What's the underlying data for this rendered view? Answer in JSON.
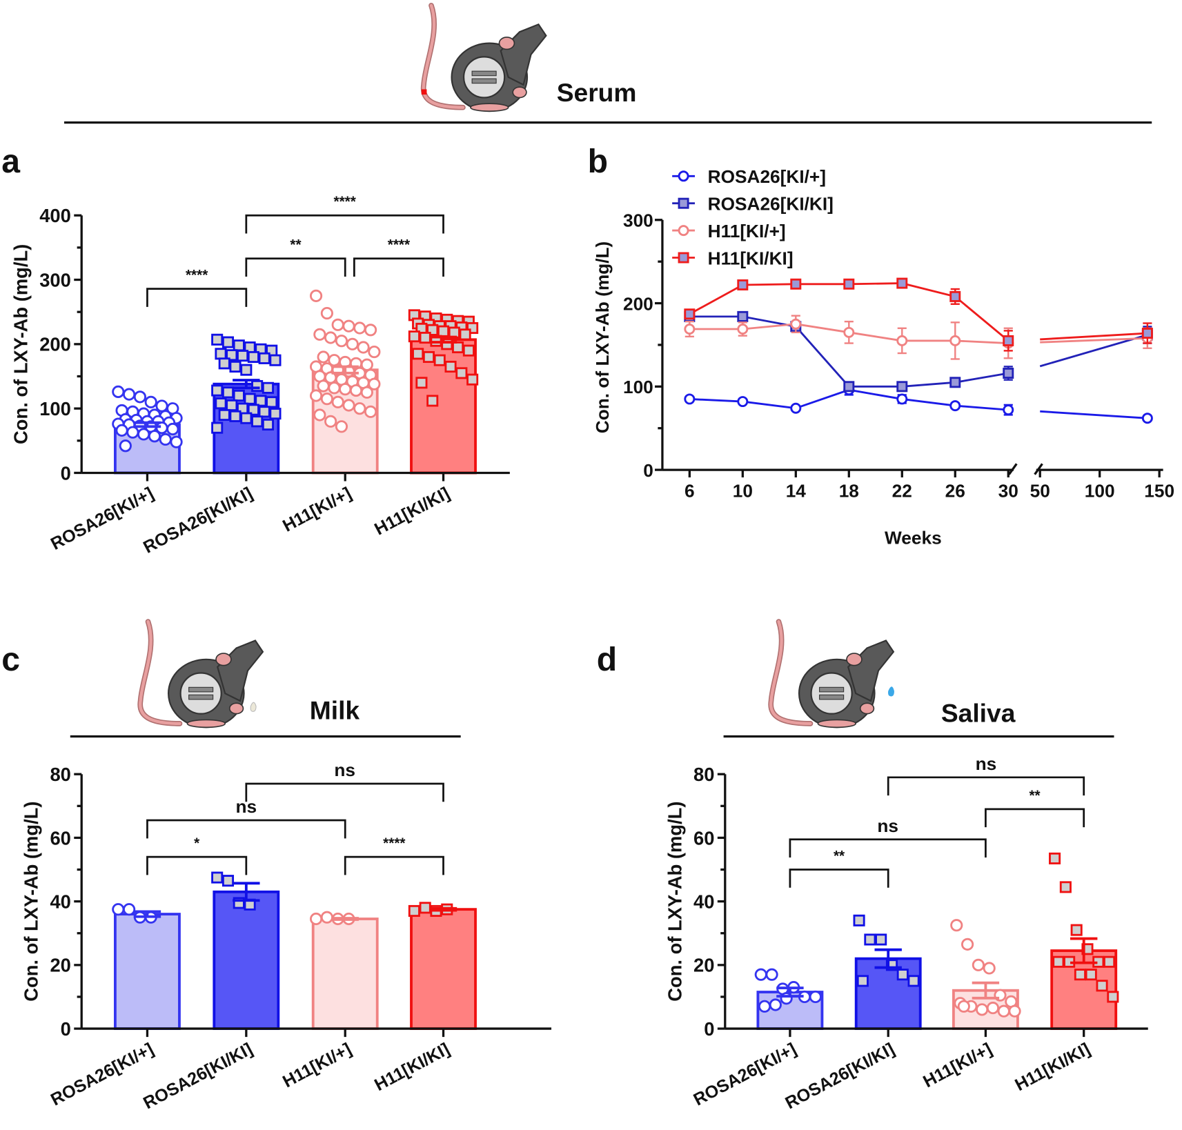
{
  "headers": {
    "serum": "Serum",
    "milk": "Milk",
    "saliva": "Saliva"
  },
  "panel_labels": {
    "a": "a",
    "b": "b",
    "c": "c",
    "d": "d"
  },
  "colors": {
    "rosa_het_fill": "#bcbcf8",
    "rosa_het_stroke": "#3434f0",
    "rosa_hom_fill": "#5656f6",
    "rosa_hom_stroke": "#1010e6",
    "h11_het_fill": "#fde0e0",
    "h11_het_stroke": "#f08282",
    "h11_hom_fill": "#ff8080",
    "h11_hom_stroke": "#f01010",
    "square_fill": "#cfcfcf"
  },
  "chart_data": [
    {
      "id": "a",
      "type": "bar",
      "title": "",
      "xlabel": "",
      "ylabel": "Con. of LXY-Ab (mg/L)",
      "ylim": [
        0,
        400
      ],
      "yticks": [
        0,
        100,
        200,
        300,
        400
      ],
      "categories": [
        "ROSA26[KI/+]",
        "ROSA26[KI/KI]",
        "H11[KI/+]",
        "H11[KI/KI]"
      ],
      "means": [
        75,
        138,
        160,
        207
      ],
      "sems": [
        3,
        6,
        5,
        4
      ],
      "points": [
        [
          126,
          122,
          118,
          110,
          104,
          100,
          97,
          95,
          92,
          90,
          88,
          85,
          83,
          82,
          80,
          80,
          78,
          76,
          75,
          73,
          72,
          70,
          68,
          66,
          63,
          60,
          57,
          52,
          48,
          42
        ],
        [
          207,
          203,
          198,
          195,
          192,
          190,
          185,
          183,
          182,
          180,
          178,
          175,
          170,
          165,
          160,
          135,
          132,
          128,
          125,
          120,
          115,
          112,
          110,
          108,
          105,
          100,
          98,
          95,
          92,
          90,
          88,
          85,
          80,
          75,
          70
        ],
        [
          275,
          248,
          230,
          228,
          225,
          222,
          215,
          210,
          205,
          200,
          195,
          188,
          180,
          175,
          172,
          170,
          168,
          165,
          162,
          160,
          158,
          155,
          152,
          150,
          148,
          145,
          142,
          140,
          138,
          135,
          132,
          130,
          128,
          125,
          120,
          115,
          110,
          105,
          100,
          95,
          90,
          80,
          72
        ],
        [
          245,
          243,
          240,
          238,
          236,
          235,
          232,
          230,
          228,
          228,
          226,
          225,
          224,
          222,
          220,
          218,
          215,
          212,
          210,
          205,
          200,
          195,
          190,
          185,
          180,
          175,
          165,
          155,
          145,
          140,
          112
        ]
      ],
      "significance": [
        {
          "from": 0,
          "to": 1,
          "label": "****",
          "level": 286
        },
        {
          "from": 1,
          "to": 2,
          "label": "**",
          "level": 333
        },
        {
          "from": 2,
          "to": 3,
          "label": "****",
          "level": 333
        },
        {
          "from": 1,
          "to": 3,
          "label": "****",
          "level": 400
        }
      ]
    },
    {
      "id": "b",
      "type": "line",
      "xlabel": "Weeks",
      "ylabel": "Con. of LXY-Ab (mg/L)",
      "ylim": [
        0,
        300
      ],
      "yticks": [
        0,
        100,
        200,
        300
      ],
      "x": [
        6,
        10,
        14,
        18,
        22,
        26,
        30,
        140
      ],
      "xticks_left": [
        6,
        10,
        14,
        18,
        22,
        26,
        30
      ],
      "xticks_right": [
        50,
        100,
        150
      ],
      "axis_break": [
        30,
        50
      ],
      "series": [
        {
          "name": "ROSA26[KI/+]",
          "marker": "circle",
          "color": "#1a1ae8",
          "values": [
            85,
            82,
            74,
            96,
            85,
            77,
            72,
            62
          ],
          "errors": [
            2,
            2,
            2,
            6,
            5,
            3,
            6,
            2
          ]
        },
        {
          "name": "ROSA26[KI/KI]",
          "marker": "square",
          "color": "#2222b8",
          "values": [
            184,
            184,
            172,
            100,
            100,
            105,
            116,
            162
          ],
          "errors": [
            3,
            3,
            3,
            5,
            4,
            4,
            8,
            10
          ]
        },
        {
          "name": "H11[KI/+]",
          "marker": "circle",
          "color": "#f08282",
          "values": [
            169,
            169,
            175,
            165,
            155,
            155,
            152,
            158
          ],
          "errors": [
            9,
            8,
            10,
            13,
            15,
            22,
            18,
            12
          ]
        },
        {
          "name": "H11[KI/KI]",
          "marker": "square",
          "color": "#ee1c1c",
          "values": [
            187,
            222,
            223,
            223,
            224,
            208,
            155,
            164
          ],
          "errors": [
            3,
            4,
            3,
            3,
            3,
            9,
            12,
            12
          ]
        }
      ]
    },
    {
      "id": "c",
      "type": "bar",
      "xlabel": "",
      "ylabel": "Con. of LXY-Ab (mg/L)",
      "ylim": [
        0,
        80
      ],
      "yticks": [
        0,
        20,
        40,
        60,
        80
      ],
      "categories": [
        "ROSA26[KI/+]",
        "ROSA26[KI/KI]",
        "H11[KI/+]",
        "H11[KI/KI]"
      ],
      "means": [
        36,
        43,
        34.5,
        37.5
      ],
      "sems": [
        0.8,
        2.7,
        0.2,
        0.3
      ],
      "points": [
        [
          37.5,
          37.5,
          35,
          35
        ],
        [
          47.5,
          46.5,
          39.5,
          39
        ],
        [
          34.5,
          35,
          34.5,
          34.5
        ],
        [
          37,
          38,
          37,
          37.5
        ]
      ],
      "significance": [
        {
          "from": 0,
          "to": 1,
          "label": "*",
          "level": 54
        },
        {
          "from": 0,
          "to": 2,
          "label": "ns",
          "level": 65.5
        },
        {
          "from": 2,
          "to": 3,
          "label": "****",
          "level": 54
        },
        {
          "from": 1,
          "to": 3,
          "label": "ns",
          "level": 77
        }
      ]
    },
    {
      "id": "d",
      "type": "bar",
      "xlabel": "",
      "ylabel": "Con. of LXY-Ab (mg/L)",
      "ylim": [
        0,
        80
      ],
      "yticks": [
        0,
        20,
        40,
        60,
        80
      ],
      "categories": [
        "ROSA26[KI/+]",
        "ROSA26[KI/KI]",
        "H11[KI/+]",
        "H11[KI/KI]"
      ],
      "means": [
        11.5,
        22,
        12,
        24.5
      ],
      "sems": [
        1.3,
        2.8,
        2.4,
        3.8
      ],
      "points": [
        [
          17,
          17,
          12.5,
          13,
          10,
          10,
          7,
          7.5,
          9.5
        ],
        [
          34,
          28,
          28,
          20,
          17,
          15,
          15
        ],
        [
          32.5,
          26.5,
          20,
          19,
          10.5,
          8.5,
          8,
          7,
          6,
          6.5,
          5.5,
          5.5,
          7
        ],
        [
          53.5,
          44.5,
          31,
          25,
          21,
          21,
          21,
          21,
          17,
          17,
          13.5,
          10
        ]
      ],
      "significance": [
        {
          "from": 0,
          "to": 1,
          "label": "**",
          "level": 50
        },
        {
          "from": 0,
          "to": 2,
          "label": "ns",
          "level": 59.5
        },
        {
          "from": 2,
          "to": 3,
          "label": "**",
          "level": 69
        },
        {
          "from": 1,
          "to": 3,
          "label": "ns",
          "level": 79
        }
      ]
    }
  ]
}
